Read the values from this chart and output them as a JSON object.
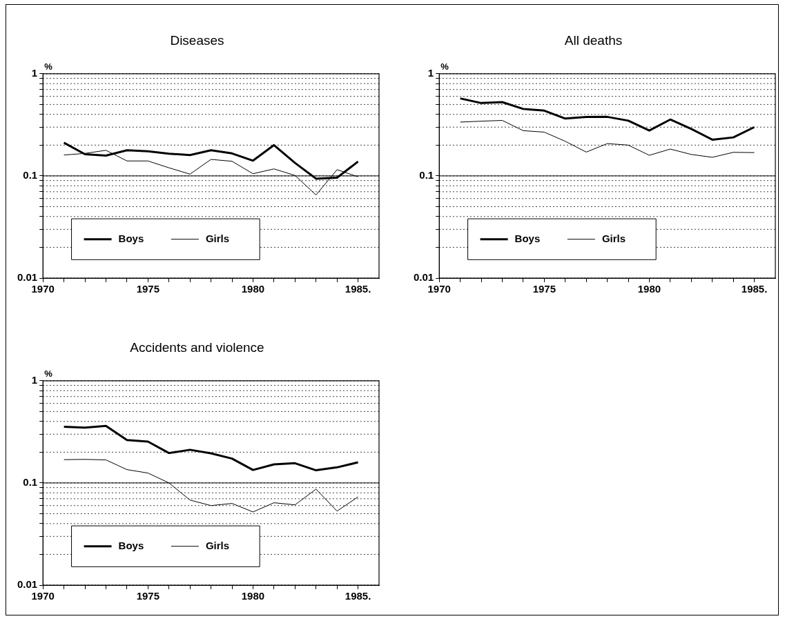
{
  "chart_data": [
    {
      "type": "line",
      "title": "Diseases",
      "ylabel": "%",
      "ref_lines": [
        {
          "axis": "y",
          "value": 0.1,
          "line_style": "solid"
        }
      ],
      "log": "y",
      "grid": "y",
      "legend": "bottom left",
      "line_style": "solid",
      "marker": "none",
      "x": [
        1971,
        1972,
        1973,
        1974,
        1975,
        1976,
        1977,
        1978,
        1979,
        1980,
        1981,
        1982,
        1983,
        1984,
        1985
      ],
      "xlim": [
        1970,
        1986
      ],
      "ylim": [
        0.01,
        1
      ],
      "xticks": [
        1970,
        {
          "value": 1971,
          "label": null
        },
        {
          "value": 1972,
          "label": null
        },
        {
          "value": 1973,
          "label": null
        },
        {
          "value": 1974,
          "label": null
        },
        1975,
        {
          "value": 1976,
          "label": null
        },
        {
          "value": 1977,
          "label": null
        },
        {
          "value": 1978,
          "label": null
        },
        {
          "value": 1979,
          "label": null
        },
        1980,
        {
          "value": 1981,
          "label": null
        },
        {
          "value": 1982,
          "label": null
        },
        {
          "value": 1983,
          "label": null
        },
        {
          "value": 1984,
          "label": null
        },
        {
          "value": 1985,
          "label": "1985."
        }
      ],
      "yticks": [
        0.01,
        {
          "value": 0.02,
          "label": null
        },
        {
          "value": 0.03,
          "label": null
        },
        {
          "value": 0.04,
          "label": null
        },
        {
          "value": 0.05,
          "label": null
        },
        {
          "value": 0.06,
          "label": null
        },
        {
          "value": 0.07,
          "label": null
        },
        {
          "value": 0.08,
          "label": null
        },
        {
          "value": 0.09,
          "label": null
        },
        0.1,
        {
          "value": 0.2,
          "label": null
        },
        {
          "value": 0.3,
          "label": null
        },
        {
          "value": 0.4,
          "label": null
        },
        {
          "value": 0.5,
          "label": null
        },
        {
          "value": 0.6,
          "label": null
        },
        {
          "value": 0.7,
          "label": null
        },
        {
          "value": 0.8,
          "label": null
        },
        {
          "value": 0.9,
          "label": null
        },
        1
      ],
      "series": [
        {
          "name": "Boys",
          "color": "#000000",
          "values": [
            0.211,
            0.163,
            0.158,
            0.178,
            0.174,
            0.165,
            0.16,
            0.178,
            0.166,
            0.141,
            0.2,
            0.134,
            0.094,
            0.096,
            0.138
          ]
        },
        {
          "name": "Girls",
          "color": "#000000",
          "values": [
            0.16,
            0.166,
            0.178,
            0.14,
            0.14,
            0.12,
            0.104,
            0.145,
            0.139,
            0.105,
            0.117,
            0.101,
            0.065,
            0.115,
            0.098
          ]
        }
      ]
    },
    {
      "type": "line",
      "title": "All deaths",
      "ylabel": "%",
      "ref_lines": [
        {
          "axis": "y",
          "value": 0.1,
          "line_style": "solid"
        }
      ],
      "log": "y",
      "grid": "y",
      "legend": "bottom left",
      "line_style": "solid",
      "marker": "none",
      "x": [
        1971,
        1972,
        1973,
        1974,
        1975,
        1976,
        1977,
        1978,
        1979,
        1980,
        1981,
        1982,
        1983,
        1984,
        1985
      ],
      "xlim": [
        1970,
        1986
      ],
      "ylim": [
        0.01,
        1
      ],
      "xticks": [
        1970,
        {
          "value": 1971,
          "label": null
        },
        {
          "value": 1972,
          "label": null
        },
        {
          "value": 1973,
          "label": null
        },
        {
          "value": 1974,
          "label": null
        },
        1975,
        {
          "value": 1976,
          "label": null
        },
        {
          "value": 1977,
          "label": null
        },
        {
          "value": 1978,
          "label": null
        },
        {
          "value": 1979,
          "label": null
        },
        1980,
        {
          "value": 1981,
          "label": null
        },
        {
          "value": 1982,
          "label": null
        },
        {
          "value": 1983,
          "label": null
        },
        {
          "value": 1984,
          "label": null
        },
        {
          "value": 1985,
          "label": "1985."
        }
      ],
      "yticks": [
        0.01,
        {
          "value": 0.02,
          "label": null
        },
        {
          "value": 0.03,
          "label": null
        },
        {
          "value": 0.04,
          "label": null
        },
        {
          "value": 0.05,
          "label": null
        },
        {
          "value": 0.06,
          "label": null
        },
        {
          "value": 0.07,
          "label": null
        },
        {
          "value": 0.08,
          "label": null
        },
        {
          "value": 0.09,
          "label": null
        },
        0.1,
        {
          "value": 0.2,
          "label": null
        },
        {
          "value": 0.3,
          "label": null
        },
        {
          "value": 0.4,
          "label": null
        },
        {
          "value": 0.5,
          "label": null
        },
        {
          "value": 0.6,
          "label": null
        },
        {
          "value": 0.7,
          "label": null
        },
        {
          "value": 0.8,
          "label": null
        },
        {
          "value": 0.9,
          "label": null
        },
        1
      ],
      "series": [
        {
          "name": "Boys",
          "color": "#000000",
          "values": [
            0.573,
            0.516,
            0.527,
            0.452,
            0.435,
            0.364,
            0.377,
            0.378,
            0.347,
            0.278,
            0.356,
            0.288,
            0.226,
            0.238,
            0.3
          ]
        },
        {
          "name": "Girls",
          "color": "#000000",
          "values": [
            0.336,
            0.343,
            0.349,
            0.277,
            0.268,
            0.218,
            0.171,
            0.207,
            0.2,
            0.159,
            0.183,
            0.162,
            0.152,
            0.17,
            0.169
          ]
        }
      ]
    },
    {
      "type": "line",
      "title": "Accidents and violence",
      "ylabel": "%",
      "ref_lines": [
        {
          "axis": "y",
          "value": 0.1,
          "line_style": "solid"
        }
      ],
      "log": "y",
      "grid": "y",
      "legend": "bottom left",
      "line_style": "solid",
      "marker": "none",
      "x": [
        1971,
        1972,
        1973,
        1974,
        1975,
        1976,
        1977,
        1978,
        1979,
        1980,
        1981,
        1982,
        1983,
        1984,
        1985
      ],
      "xlim": [
        1970,
        1986
      ],
      "ylim": [
        0.01,
        1
      ],
      "xticks": [
        1970,
        {
          "value": 1971,
          "label": null
        },
        {
          "value": 1972,
          "label": null
        },
        {
          "value": 1973,
          "label": null
        },
        {
          "value": 1974,
          "label": null
        },
        1975,
        {
          "value": 1976,
          "label": null
        },
        {
          "value": 1977,
          "label": null
        },
        {
          "value": 1978,
          "label": null
        },
        {
          "value": 1979,
          "label": null
        },
        1980,
        {
          "value": 1981,
          "label": null
        },
        {
          "value": 1982,
          "label": null
        },
        {
          "value": 1983,
          "label": null
        },
        {
          "value": 1984,
          "label": null
        },
        {
          "value": 1985,
          "label": "1985."
        }
      ],
      "yticks": [
        0.01,
        {
          "value": 0.02,
          "label": null
        },
        {
          "value": 0.03,
          "label": null
        },
        {
          "value": 0.04,
          "label": null
        },
        {
          "value": 0.05,
          "label": null
        },
        {
          "value": 0.06,
          "label": null
        },
        {
          "value": 0.07,
          "label": null
        },
        {
          "value": 0.08,
          "label": null
        },
        {
          "value": 0.09,
          "label": null
        },
        0.1,
        {
          "value": 0.2,
          "label": null
        },
        {
          "value": 0.3,
          "label": null
        },
        {
          "value": 0.4,
          "label": null
        },
        {
          "value": 0.5,
          "label": null
        },
        {
          "value": 0.6,
          "label": null
        },
        {
          "value": 0.7,
          "label": null
        },
        {
          "value": 0.8,
          "label": null
        },
        {
          "value": 0.9,
          "label": null
        },
        1
      ],
      "series": [
        {
          "name": "Boys",
          "color": "#000000",
          "values": [
            0.354,
            0.348,
            0.362,
            0.263,
            0.254,
            0.196,
            0.211,
            0.195,
            0.173,
            0.134,
            0.152,
            0.156,
            0.133,
            0.142,
            0.159
          ]
        },
        {
          "name": "Girls",
          "color": "#000000",
          "values": [
            0.169,
            0.17,
            0.168,
            0.135,
            0.125,
            0.1,
            0.068,
            0.06,
            0.063,
            0.052,
            0.064,
            0.061,
            0.087,
            0.053,
            0.073
          ]
        }
      ]
    }
  ]
}
